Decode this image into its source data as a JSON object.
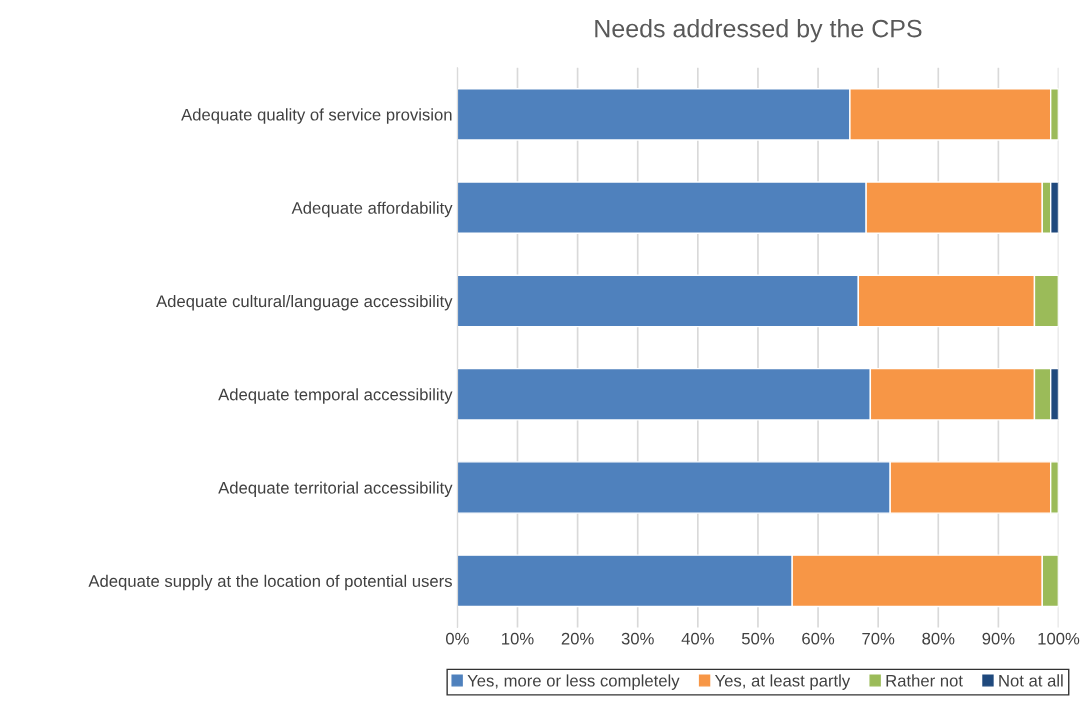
{
  "chart_data": {
    "type": "bar",
    "orientation": "horizontal",
    "stacked": true,
    "title": "Needs addressed by the CPS",
    "categories": [
      "Adequate quality of service provision",
      "Adequate affordability",
      "Adequate cultural/language accessibility",
      "Adequate temporal accessibility",
      "Adequate territorial accessibility",
      "Adequate supply at the location of potential users"
    ],
    "series": [
      {
        "name": "Yes, more or less completely",
        "color": "#4f81bd",
        "values": [
          65.3,
          68,
          66.7,
          68.7,
          72,
          55.7
        ]
      },
      {
        "name": "Yes, at least partly",
        "color": "#f79646",
        "values": [
          33.4,
          29.3,
          29.3,
          27.3,
          26.7,
          41.6
        ]
      },
      {
        "name": "Rather not",
        "color": "#9bbb59",
        "values": [
          1.3,
          1.4,
          4,
          2.7,
          1.3,
          2.7
        ]
      },
      {
        "name": "Not at all",
        "color": "#1f497d",
        "values": [
          null,
          1.3,
          null,
          1.3,
          null,
          null
        ]
      }
    ],
    "xlim": [
      0,
      100
    ],
    "xticks": [
      {
        "value": 0,
        "label": "0%"
      },
      {
        "value": 10,
        "label": "10%"
      },
      {
        "value": 20,
        "label": "20%"
      },
      {
        "value": 30,
        "label": "30%"
      },
      {
        "value": 40,
        "label": "40%"
      },
      {
        "value": 50,
        "label": "50%"
      },
      {
        "value": 60,
        "label": "60%"
      },
      {
        "value": 70,
        "label": "70%"
      },
      {
        "value": 80,
        "label": "80%"
      },
      {
        "value": 90,
        "label": "90%"
      },
      {
        "value": 100,
        "label": "100%"
      }
    ],
    "grid": "x",
    "legend": "bottom"
  }
}
